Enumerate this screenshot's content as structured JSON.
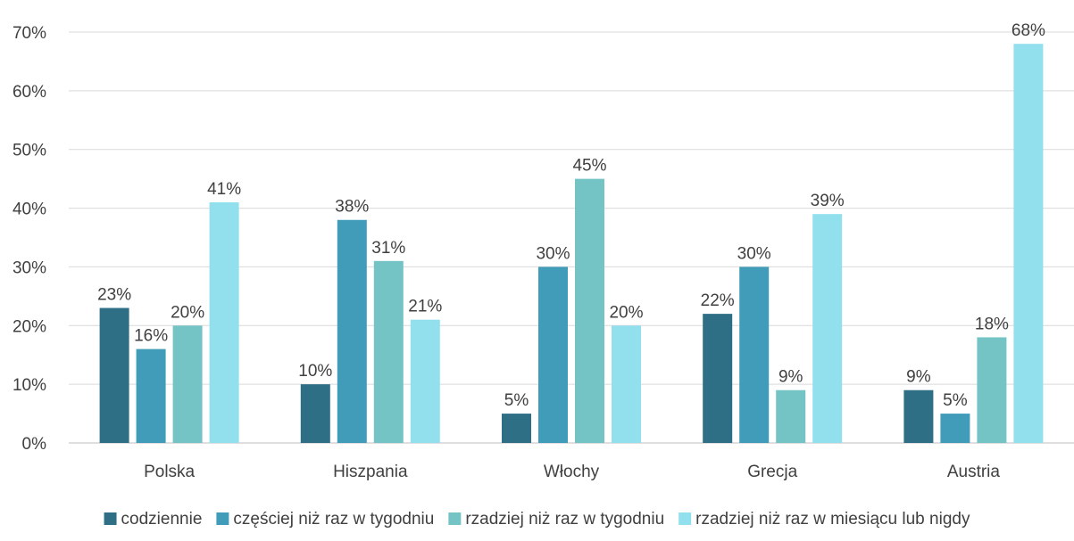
{
  "chart_data": {
    "type": "bar",
    "title": "",
    "xlabel": "",
    "ylabel": "",
    "ylim": [
      0,
      70
    ],
    "yticks": [
      "0%",
      "10%",
      "20%",
      "30%",
      "40%",
      "50%",
      "60%",
      "70%"
    ],
    "ytick_values": [
      0,
      10,
      20,
      30,
      40,
      50,
      60,
      70
    ],
    "grid": true,
    "legend_position": "bottom",
    "categories": [
      "Polska",
      "Hiszpania",
      "Włochy",
      "Grecja",
      "Austria"
    ],
    "series": [
      {
        "name": "codziennie",
        "color": "#2e6f86",
        "values": [
          23,
          10,
          5,
          22,
          9
        ],
        "labels": [
          "23%",
          "10%",
          "5%",
          "22%",
          "9%"
        ]
      },
      {
        "name": "częściej niż raz w tygodniu",
        "color": "#419cba",
        "values": [
          16,
          38,
          30,
          30,
          5
        ],
        "labels": [
          "16%",
          "38%",
          "30%",
          "30%",
          "5%"
        ]
      },
      {
        "name": "rzadziej niż raz w tygodniu",
        "color": "#74c4c6",
        "values": [
          20,
          31,
          45,
          9,
          18
        ],
        "labels": [
          "20%",
          "31%",
          "45%",
          "9%",
          "18%"
        ]
      },
      {
        "name": "rzadziej niż raz w miesiącu lub nigdy",
        "color": "#92e0ee",
        "values": [
          41,
          21,
          20,
          39,
          68
        ],
        "labels": [
          "41%",
          "21%",
          "20%",
          "39%",
          "68%"
        ]
      }
    ]
  }
}
